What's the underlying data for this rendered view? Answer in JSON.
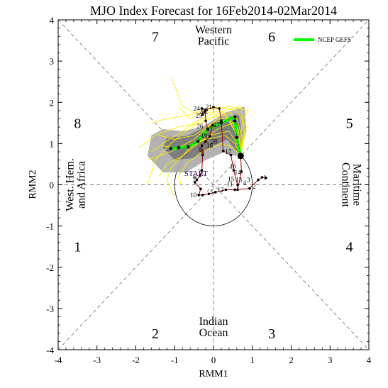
{
  "chart_data": {
    "type": "line",
    "title": "MJO Index Forecast for 16Feb2014-02Mar2014",
    "xlabel": "RMM1",
    "ylabel": "RMM2",
    "xlim": [
      -4,
      4
    ],
    "ylim": [
      -4,
      4
    ],
    "x_ticks": [
      "-4",
      "-3",
      "-2",
      "-1",
      "0",
      "1",
      "2",
      "3",
      "4"
    ],
    "y_ticks": [
      "-4",
      "-3",
      "-2",
      "-1",
      "0",
      "1",
      "2",
      "3",
      "4"
    ],
    "grid": false,
    "legend": {
      "position": "top-right",
      "entries": [
        {
          "label": "NCEP GEFS",
          "color": "#00ff00"
        }
      ]
    },
    "phases": [
      {
        "label": "1",
        "x": -3.5,
        "y": -1.5
      },
      {
        "label": "2",
        "x": -1.5,
        "y": -3.6
      },
      {
        "label": "3",
        "x": 1.5,
        "y": -3.6
      },
      {
        "label": "4",
        "x": 3.5,
        "y": -1.5
      },
      {
        "label": "5",
        "x": 3.5,
        "y": 1.5
      },
      {
        "label": "6",
        "x": 1.5,
        "y": 3.6
      },
      {
        "label": "7",
        "x": -1.5,
        "y": 3.6
      },
      {
        "label": "8",
        "x": -3.5,
        "y": 1.5
      }
    ],
    "regions": [
      {
        "lines": [
          "Western",
          "Pacific"
        ],
        "x": 0,
        "y": 3.62,
        "rotate": 0
      },
      {
        "lines": [
          "Indian",
          "Ocean"
        ],
        "x": 0,
        "y": -3.45,
        "rotate": 0
      },
      {
        "lines": [
          "West. Hem.",
          "and Africa"
        ],
        "x": -3.55,
        "y": 0,
        "rotate": -90
      },
      {
        "lines": [
          "Maritime",
          "Continent"
        ],
        "x": 3.55,
        "y": 0,
        "rotate": 90
      }
    ],
    "start_label": {
      "text": "START",
      "x": -0.45,
      "y": 0.28
    },
    "observed": {
      "color": "#990000",
      "points": [
        {
          "x": 1.35,
          "y": 0.17,
          "label": ""
        },
        {
          "x": 1.25,
          "y": 0.18,
          "label": ""
        },
        {
          "x": 1.15,
          "y": 0.12,
          "label": ""
        },
        {
          "x": 0.93,
          "y": -0.09,
          "label": ""
        },
        {
          "x": 0.55,
          "y": -0.12,
          "label": ""
        },
        {
          "x": 0.32,
          "y": -0.12,
          "label": ""
        },
        {
          "x": 0.05,
          "y": -0.18,
          "label": "5"
        },
        {
          "x": -0.12,
          "y": -0.22,
          "label": ""
        },
        {
          "x": -0.28,
          "y": -0.25,
          "label": ""
        },
        {
          "x": -0.38,
          "y": -0.25,
          "label": "10"
        },
        {
          "x": -0.33,
          "y": -0.1,
          "label": ""
        },
        {
          "x": -0.48,
          "y": 0.06,
          "label": ""
        },
        {
          "x": -0.43,
          "y": 0.12,
          "label": ""
        },
        {
          "x": -0.35,
          "y": 0.22,
          "label": ""
        },
        {
          "x": -0.3,
          "y": 0.35,
          "label": ""
        },
        {
          "x": -0.28,
          "y": 0.72,
          "label": ""
        },
        {
          "x": -0.3,
          "y": 0.95,
          "label": ""
        },
        {
          "x": -0.2,
          "y": 1.05,
          "label": ""
        },
        {
          "x": -0.1,
          "y": 1.18,
          "label": "19"
        },
        {
          "x": -0.02,
          "y": 1.45,
          "label": ""
        },
        {
          "x": -0.15,
          "y": 1.35,
          "label": ""
        },
        {
          "x": -0.2,
          "y": 1.55,
          "label": ""
        },
        {
          "x": -0.22,
          "y": 1.78,
          "label": ""
        },
        {
          "x": -0.28,
          "y": 1.7,
          "label": ""
        },
        {
          "x": -0.3,
          "y": 1.85,
          "label": "24"
        },
        {
          "x": -0.2,
          "y": 1.82,
          "label": ""
        },
        {
          "x": 0.0,
          "y": 1.88,
          "label": ""
        },
        {
          "x": 0.15,
          "y": 1.85,
          "label": ""
        },
        {
          "x": 0.2,
          "y": 1.55,
          "label": ""
        },
        {
          "x": 0.25,
          "y": 0.82,
          "label": ""
        },
        {
          "x": 0.45,
          "y": 0.72,
          "label": ""
        },
        {
          "x": 0.52,
          "y": 0.35,
          "label": ""
        },
        {
          "x": 0.62,
          "y": 0.0,
          "label": ""
        },
        {
          "x": 0.62,
          "y": -0.12,
          "label": ""
        },
        {
          "x": 0.72,
          "y": 0.32,
          "label": ""
        },
        {
          "x": 0.7,
          "y": 0.7,
          "label": ""
        }
      ],
      "labels": [
        {
          "text": "17",
          "x": 0.38,
          "y": 0.8
        },
        {
          "text": "16",
          "x": 0.5,
          "y": 0.45
        },
        {
          "text": "14",
          "x": 0.62,
          "y": 0.3
        },
        {
          "text": "15",
          "x": 0.45,
          "y": 0.14
        },
        {
          "text": "13",
          "x": 0.65,
          "y": 0.12
        },
        {
          "text": "11",
          "x": 0.42,
          "y": 0.02
        },
        {
          "text": "1",
          "x": 1.32,
          "y": 0.17
        },
        {
          "text": "2",
          "x": 1.05,
          "y": -0.04
        },
        {
          "text": "3",
          "x": 0.9,
          "y": 0.12
        },
        {
          "text": "4",
          "x": 0.8,
          "y": 0.04
        },
        {
          "text": "12",
          "x": 0.18,
          "y": -0.12
        },
        {
          "text": "6",
          "x": -0.48,
          "y": 0.2
        },
        {
          "text": "7",
          "x": -0.5,
          "y": 0.12
        },
        {
          "text": "20",
          "x": 0.02,
          "y": 1.05
        },
        {
          "text": "25",
          "x": -0.38,
          "y": 1.68
        },
        {
          "text": "26",
          "x": -0.35,
          "y": 1.42
        },
        {
          "text": "21",
          "x": -0.12,
          "y": 1.88
        },
        {
          "text": "22",
          "x": -0.22,
          "y": 1.78
        },
        {
          "text": "23",
          "x": -0.28,
          "y": 1.78
        },
        {
          "text": "18",
          "x": -0.1,
          "y": 0.95
        },
        {
          "text": "8",
          "x": -0.35,
          "y": 0.85
        },
        {
          "text": "9",
          "x": -0.28,
          "y": 0.78
        },
        {
          "text": "27",
          "x": 0.08,
          "y": 1.45
        }
      ],
      "current": {
        "x": 0.7,
        "y": 0.7
      }
    },
    "ensemble_mean": {
      "name": "NCEP GEFS",
      "color": "#00ff00",
      "points": [
        {
          "x": 0.7,
          "y": 0.7
        },
        {
          "x": 0.6,
          "y": 1.15
        },
        {
          "x": 0.55,
          "y": 1.55
        },
        {
          "x": 0.55,
          "y": 1.65
        },
        {
          "x": 0.2,
          "y": 1.5
        },
        {
          "x": -0.15,
          "y": 1.35
        },
        {
          "x": -0.4,
          "y": 1.05
        },
        {
          "x": -0.65,
          "y": 0.92
        },
        {
          "x": -0.9,
          "y": 0.9
        },
        {
          "x": -1.1,
          "y": 0.88
        }
      ]
    },
    "spread_outer": {
      "color": "#aaaaaa",
      "points": [
        {
          "x": 0.7,
          "y": 0.75
        },
        {
          "x": 0.85,
          "y": 1.3
        },
        {
          "x": 0.8,
          "y": 1.9
        },
        {
          "x": 0.3,
          "y": 1.75
        },
        {
          "x": -0.3,
          "y": 1.4
        },
        {
          "x": -0.8,
          "y": 1.3
        },
        {
          "x": -1.3,
          "y": 1.35
        },
        {
          "x": -1.6,
          "y": 1.2
        },
        {
          "x": -1.7,
          "y": 0.7
        },
        {
          "x": -1.3,
          "y": 0.3
        },
        {
          "x": -0.7,
          "y": 0.3
        },
        {
          "x": -0.2,
          "y": 0.6
        },
        {
          "x": 0.3,
          "y": 0.8
        },
        {
          "x": 0.55,
          "y": 0.7
        }
      ]
    },
    "spread_inner": {
      "color": "#777777",
      "points": [
        {
          "x": 0.7,
          "y": 0.75
        },
        {
          "x": 0.72,
          "y": 1.3
        },
        {
          "x": 0.65,
          "y": 1.7
        },
        {
          "x": 0.2,
          "y": 1.6
        },
        {
          "x": -0.2,
          "y": 1.4
        },
        {
          "x": -0.7,
          "y": 1.18
        },
        {
          "x": -1.2,
          "y": 1.15
        },
        {
          "x": -1.3,
          "y": 0.9
        },
        {
          "x": -1.0,
          "y": 0.6
        },
        {
          "x": -0.5,
          "y": 0.65
        },
        {
          "x": -0.1,
          "y": 0.9
        },
        {
          "x": 0.35,
          "y": 1.1
        },
        {
          "x": 0.6,
          "y": 0.8
        }
      ]
    },
    "members": {
      "color": "#ffee00",
      "lines": [
        [
          [
            0.7,
            0.7
          ],
          [
            0.6,
            1.2
          ],
          [
            0.4,
            1.6
          ],
          [
            0.0,
            1.5
          ],
          [
            -0.5,
            1.2
          ],
          [
            -1.0,
            1.1
          ],
          [
            -1.4,
            1.2
          ]
        ],
        [
          [
            0.7,
            0.7
          ],
          [
            0.8,
            1.3
          ],
          [
            0.7,
            1.9
          ],
          [
            0.3,
            1.8
          ],
          [
            -0.3,
            1.5
          ],
          [
            -0.9,
            1.4
          ],
          [
            -1.5,
            1.2
          ],
          [
            -1.9,
            0.9
          ]
        ],
        [
          [
            0.7,
            0.7
          ],
          [
            0.65,
            1.1
          ],
          [
            0.5,
            1.5
          ],
          [
            0.1,
            1.35
          ],
          [
            -0.4,
            1.0
          ],
          [
            -0.8,
            0.7
          ],
          [
            -1.2,
            0.5
          ],
          [
            -1.4,
            0.2
          ]
        ],
        [
          [
            0.7,
            0.7
          ],
          [
            0.55,
            1.3
          ],
          [
            0.3,
            1.7
          ],
          [
            -0.2,
            1.6
          ],
          [
            -0.7,
            1.3
          ],
          [
            -1.1,
            1.0
          ],
          [
            -1.5,
            0.6
          ],
          [
            -1.7,
            0.0
          ]
        ],
        [
          [
            0.7,
            0.7
          ],
          [
            0.7,
            1.2
          ],
          [
            0.75,
            1.6
          ],
          [
            0.9,
            1.8
          ],
          [
            0.4,
            1.9
          ],
          [
            -0.2,
            1.8
          ],
          [
            -0.6,
            1.6
          ],
          [
            -0.9,
            1.9
          ]
        ],
        [
          [
            0.7,
            0.7
          ],
          [
            0.5,
            0.9
          ],
          [
            0.2,
            1.0
          ],
          [
            -0.3,
            0.8
          ],
          [
            -0.7,
            0.5
          ],
          [
            -0.9,
            0.2
          ],
          [
            -0.8,
            -0.1
          ]
        ],
        [
          [
            0.7,
            0.7
          ],
          [
            0.6,
            1.4
          ],
          [
            0.2,
            1.8
          ],
          [
            -0.4,
            1.7
          ],
          [
            -0.8,
            1.9
          ],
          [
            -1.0,
            2.4
          ],
          [
            -1.1,
            2.6
          ]
        ],
        [
          [
            0.7,
            0.7
          ],
          [
            0.75,
            1.1
          ],
          [
            0.6,
            1.6
          ],
          [
            0.1,
            1.6
          ],
          [
            -0.5,
            1.1
          ],
          [
            -1.1,
            0.8
          ],
          [
            -1.7,
            0.6
          ]
        ],
        [
          [
            0.7,
            0.7
          ],
          [
            0.6,
            1.0
          ],
          [
            0.4,
            1.3
          ],
          [
            -0.1,
            1.2
          ],
          [
            -0.6,
            0.9
          ],
          [
            -1.1,
            0.4
          ],
          [
            -1.2,
            0.1
          ],
          [
            -1.0,
            -0.3
          ]
        ],
        [
          [
            0.7,
            0.7
          ],
          [
            0.85,
            1.4
          ],
          [
            0.6,
            1.8
          ],
          [
            0.0,
            1.9
          ],
          [
            -0.6,
            1.7
          ],
          [
            -1.2,
            1.6
          ],
          [
            -1.6,
            1.5
          ]
        ],
        [
          [
            0.7,
            0.7
          ],
          [
            0.65,
            1.3
          ],
          [
            0.45,
            1.75
          ],
          [
            -0.1,
            1.7
          ],
          [
            -0.5,
            1.5
          ],
          [
            -0.8,
            1.3
          ],
          [
            -1.3,
            1.0
          ],
          [
            -1.6,
            0.8
          ]
        ],
        [
          [
            0.7,
            0.7
          ],
          [
            0.55,
            1.0
          ],
          [
            0.3,
            1.2
          ],
          [
            -0.2,
            1.1
          ],
          [
            -0.6,
            0.95
          ],
          [
            -1.0,
            0.9
          ],
          [
            -1.35,
            0.95
          ]
        ]
      ]
    }
  }
}
